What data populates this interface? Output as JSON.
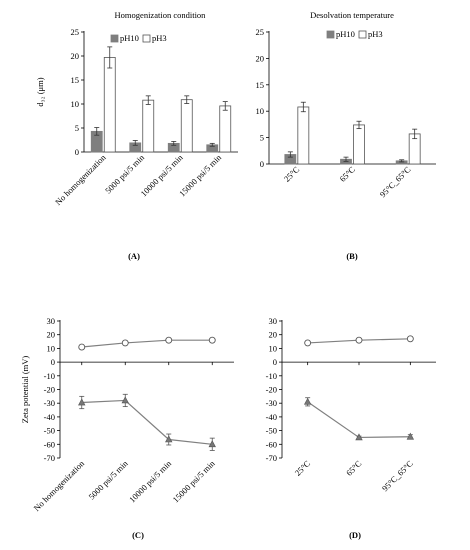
{
  "chart_data": [
    {
      "id": "A",
      "type": "bar",
      "panel_label": "(A)",
      "title": "Homogenization condition",
      "ylabel": "d₃₂ (μm)",
      "ylim": [
        0,
        25
      ],
      "yticks": [
        0,
        5,
        10,
        15,
        20,
        25
      ],
      "categories": [
        "No homogenization",
        "5000 psi/5 min",
        "10000 psi/5 min",
        "15000 psi/5 min"
      ],
      "series": [
        {
          "name": "pH10",
          "color": "#7f7f7f",
          "values": [
            4.3,
            1.9,
            1.8,
            1.5
          ],
          "errors": [
            0.8,
            0.5,
            0.4,
            0.3
          ]
        },
        {
          "name": "pH3",
          "color": "#ffffff",
          "values": [
            19.7,
            10.8,
            10.9,
            9.6
          ],
          "errors": [
            2.2,
            0.9,
            0.8,
            0.9
          ]
        }
      ],
      "legend": "top-left",
      "grid": false
    },
    {
      "id": "B",
      "type": "bar",
      "panel_label": "(B)",
      "title": "Desolvation temperature",
      "ylabel": "",
      "ylim": [
        0,
        25
      ],
      "yticks": [
        0,
        5,
        10,
        15,
        20,
        25
      ],
      "categories": [
        "25°C",
        "65°C",
        "95°C_65°C"
      ],
      "series": [
        {
          "name": "pH10",
          "color": "#7f7f7f",
          "values": [
            1.8,
            0.9,
            0.6
          ],
          "errors": [
            0.5,
            0.4,
            0.2
          ]
        },
        {
          "name": "pH3",
          "color": "#ffffff",
          "values": [
            10.8,
            7.4,
            5.7
          ],
          "errors": [
            0.9,
            0.7,
            0.9
          ]
        }
      ],
      "legend": "top-left",
      "grid": false
    },
    {
      "id": "C",
      "type": "line",
      "panel_label": "(C)",
      "title": "",
      "ylabel": "Zeta potential (mV)",
      "ylim": [
        -70,
        30
      ],
      "yticks": [
        30,
        20,
        10,
        0,
        -10,
        -20,
        -30,
        -40,
        -50,
        -60,
        -70
      ],
      "categories": [
        "No homogenization",
        "5000 psi/5 min",
        "10000 psi/5 min",
        "15000 psi/5 min"
      ],
      "series": [
        {
          "name": "",
          "marker": "circle",
          "color": "#808080",
          "values": [
            11,
            14,
            16,
            16
          ],
          "errors": [
            0,
            0,
            0,
            0
          ]
        },
        {
          "name": "",
          "marker": "triangle",
          "color": "#808080",
          "values": [
            -29.5,
            -28,
            -56.5,
            -60
          ],
          "errors": [
            4.5,
            4.5,
            4,
            4.5
          ]
        }
      ],
      "grid": false
    },
    {
      "id": "D",
      "type": "line",
      "panel_label": "(D)",
      "title": "",
      "ylabel": "",
      "ylim": [
        -70,
        30
      ],
      "yticks": [
        30,
        20,
        10,
        0,
        -10,
        -20,
        -30,
        -40,
        -50,
        -60,
        -70
      ],
      "categories": [
        "25°C",
        "65°C",
        "95°C_65°C"
      ],
      "series": [
        {
          "name": "",
          "marker": "circle",
          "color": "#808080",
          "values": [
            14,
            16,
            17
          ],
          "errors": [
            0,
            0,
            0
          ]
        },
        {
          "name": "",
          "marker": "triangle",
          "color": "#808080",
          "values": [
            -29,
            -55,
            -54.5
          ],
          "errors": [
            3,
            1,
            1.5
          ]
        }
      ],
      "grid": false
    }
  ]
}
